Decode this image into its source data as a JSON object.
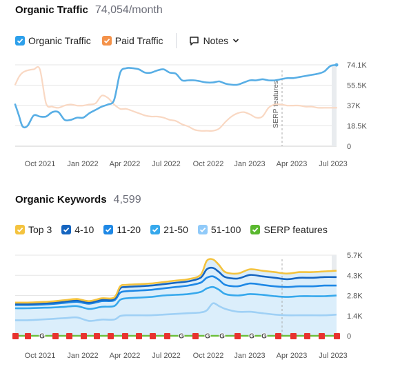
{
  "organic_traffic": {
    "title": "Organic Traffic",
    "value": "74,054/month",
    "legend": [
      {
        "label": "Organic Traffic",
        "color": "#2da0eb"
      },
      {
        "label": "Paid Traffic",
        "color": "#f4924a"
      }
    ],
    "notes_label": "Notes",
    "serp_label": "SERP features"
  },
  "organic_keywords": {
    "title": "Organic Keywords",
    "value": "4,599",
    "legend": [
      {
        "label": "Top 3",
        "color": "#f4c33f"
      },
      {
        "label": "4-10",
        "color": "#1565c0"
      },
      {
        "label": "11-20",
        "color": "#1e88e5"
      },
      {
        "label": "21-50",
        "color": "#36a8ec"
      },
      {
        "label": "51-100",
        "color": "#90caf9"
      },
      {
        "label": "SERP features",
        "color": "#5ab82f"
      }
    ]
  },
  "colors": {
    "organic": "#58aee5",
    "paid": "#f9d8c3",
    "grid": "#e6e6e6",
    "top3": "#f4c33f",
    "k4_10": "#1565c0",
    "k11_20": "#1e88e5",
    "k21_50": "#36a8ec",
    "k51_100": "#9fd0f5",
    "area": "#dbeefb",
    "serp_green": "#6cbf3c",
    "flag_red": "#e8322f"
  },
  "chart_data": [
    {
      "type": "line",
      "title": "Organic Traffic",
      "x_ticks": [
        "Oct 2021",
        "Jan 2022",
        "Apr 2022",
        "Jul 2022",
        "Oct 2022",
        "Jan 2023",
        "Apr 2023",
        "Jul 2023"
      ],
      "y_ticks": [
        "74.1K",
        "55.5K",
        "37K",
        "18.5K",
        "0"
      ],
      "ylim": [
        0,
        74100
      ],
      "x_range_months": [
        0,
        26
      ],
      "x_months": [
        0,
        0.3,
        0.6,
        1,
        1.5,
        2,
        2.5,
        3,
        3.5,
        4,
        4.5,
        5,
        5.5,
        6,
        6.5,
        7,
        7.5,
        8,
        8.5,
        9,
        9.5,
        10,
        10.5,
        11,
        11.5,
        12,
        12.5,
        13,
        13.5,
        14,
        14.5,
        15,
        15.5,
        16,
        16.5,
        17,
        17.5,
        18,
        18.5,
        19,
        19.5,
        20,
        20.5,
        21,
        21.5,
        22,
        22.5,
        23,
        23.5,
        24,
        24.5,
        25,
        25.5,
        26
      ],
      "series": [
        {
          "name": "Organic Traffic",
          "values": [
            38000,
            28000,
            18000,
            18500,
            28000,
            27000,
            27000,
            31000,
            31000,
            24000,
            24000,
            26000,
            26000,
            30000,
            33000,
            36000,
            38000,
            42000,
            67000,
            71000,
            71000,
            70000,
            67000,
            67000,
            69000,
            70000,
            67000,
            66000,
            60000,
            60000,
            60000,
            59000,
            58000,
            58000,
            59000,
            57000,
            56000,
            56000,
            58000,
            60000,
            60000,
            61000,
            60000,
            60000,
            61000,
            62000,
            62000,
            63000,
            64000,
            65000,
            66000,
            68000,
            73000,
            74000
          ]
        },
        {
          "name": "Paid Traffic",
          "values": [
            56000,
            63000,
            67000,
            69000,
            70000,
            70000,
            39000,
            36000,
            35000,
            37000,
            38000,
            37000,
            37000,
            38000,
            39000,
            46000,
            44000,
            38000,
            34000,
            34000,
            32000,
            30000,
            28000,
            27000,
            27000,
            26000,
            24000,
            23000,
            20000,
            18000,
            15000,
            14000,
            14000,
            14000,
            16000,
            22000,
            27000,
            30000,
            31000,
            29000,
            26000,
            27000,
            35000,
            38000,
            38000,
            37000,
            37000,
            37000,
            36000,
            36000,
            35000,
            35000,
            35000,
            35000
          ]
        }
      ]
    },
    {
      "type": "area",
      "title": "Organic Keywords",
      "x_ticks": [
        "Oct 2021",
        "Jan 2022",
        "Apr 2022",
        "Jul 2022",
        "Oct 2022",
        "Jan 2023",
        "Apr 2023",
        "Jul 2023"
      ],
      "y_ticks": [
        "5.7K",
        "4.3K",
        "2.8K",
        "1.4K",
        "0"
      ],
      "ylim": [
        0,
        5700
      ],
      "x_range_months": [
        0,
        26
      ],
      "x_months": [
        0,
        1,
        2,
        3,
        4,
        5,
        6,
        7,
        8,
        8.5,
        9,
        10,
        11,
        12,
        13,
        14,
        15,
        15.5,
        16,
        16.5,
        17,
        18,
        19,
        20,
        21,
        22,
        23,
        24,
        25,
        26
      ],
      "series": [
        {
          "name": "Top 3",
          "values": [
            2350,
            2350,
            2380,
            2430,
            2520,
            2600,
            2450,
            2650,
            2700,
            3500,
            3600,
            3650,
            3700,
            3800,
            3900,
            4000,
            4300,
            5300,
            5400,
            5000,
            4500,
            4400,
            4700,
            4600,
            4500,
            4400,
            4500,
            4500,
            4550,
            4600
          ]
        },
        {
          "name": "4-10",
          "values": [
            2250,
            2250,
            2280,
            2330,
            2420,
            2500,
            2350,
            2550,
            2600,
            3350,
            3450,
            3500,
            3550,
            3650,
            3750,
            3850,
            4100,
            4700,
            4800,
            4500,
            4150,
            4050,
            4300,
            4200,
            4100,
            4000,
            4100,
            4100,
            4150,
            4150
          ]
        },
        {
          "name": "11-20",
          "values": [
            2180,
            2180,
            2200,
            2250,
            2330,
            2400,
            2270,
            2450,
            2500,
            3050,
            3150,
            3200,
            3250,
            3350,
            3450,
            3550,
            3750,
            4100,
            4200,
            3950,
            3600,
            3500,
            3700,
            3600,
            3500,
            3450,
            3500,
            3500,
            3550,
            3550
          ]
        },
        {
          "name": "21-50",
          "values": [
            1950,
            1950,
            1980,
            2000,
            2050,
            2100,
            1900,
            2050,
            2100,
            2550,
            2650,
            2700,
            2750,
            2850,
            2900,
            2950,
            3100,
            3350,
            3450,
            3250,
            2950,
            2850,
            2950,
            2900,
            2800,
            2750,
            2800,
            2800,
            2800,
            2850
          ]
        },
        {
          "name": "51-100",
          "values": [
            1100,
            1100,
            1150,
            1200,
            1250,
            1300,
            1050,
            1150,
            1150,
            1400,
            1450,
            1450,
            1450,
            1500,
            1550,
            1600,
            1650,
            1800,
            2300,
            2100,
            1900,
            1700,
            1700,
            1600,
            1500,
            1450,
            1450,
            1450,
            1450,
            1500
          ]
        }
      ]
    }
  ]
}
